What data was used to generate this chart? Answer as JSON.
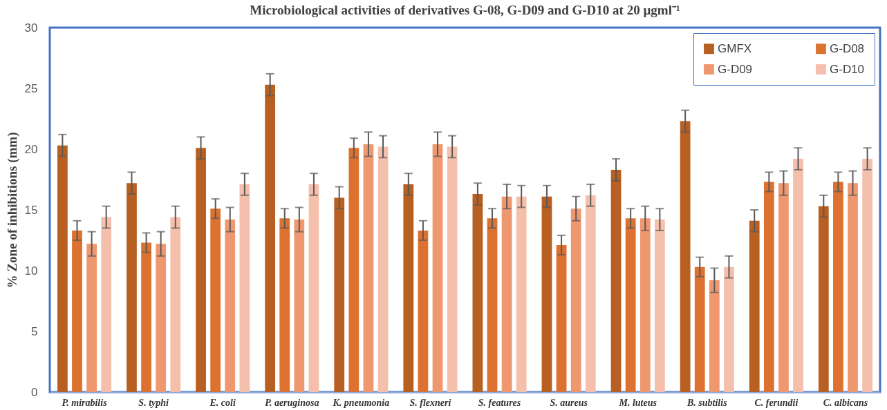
{
  "chart_data": {
    "type": "bar",
    "title": "Microbiological activities of derivatives G-08, G-D09 and G-D10 at 20 µgml⁻¹",
    "ylabel": "% Zone of inhibitions (mm)",
    "categories": [
      "P. mirabilis",
      "S. typhi",
      "E. coli",
      "P. aeruginosa",
      "K. pneumonia",
      "S. flexneri",
      "S.  features",
      "S.  aureus",
      "M. luteus",
      "B. subtilis",
      "C. ferundii",
      "C. albicans"
    ],
    "series": [
      {
        "name": "GMFX",
        "color": "#b85f22",
        "values": [
          20.3,
          17.2,
          20.1,
          25.3,
          16.0,
          17.1,
          16.3,
          16.1,
          18.3,
          22.3,
          14.1,
          15.3
        ],
        "errors": [
          0.9,
          0.9,
          0.9,
          0.9,
          0.9,
          0.9,
          0.9,
          0.9,
          0.9,
          0.9,
          0.9,
          0.9
        ]
      },
      {
        "name": "G-D08",
        "color": "#dd7230",
        "values": [
          13.3,
          12.3,
          15.1,
          14.3,
          20.1,
          13.3,
          14.3,
          12.1,
          14.3,
          10.3,
          17.3,
          17.3
        ],
        "errors": [
          0.8,
          0.8,
          0.8,
          0.8,
          0.8,
          0.8,
          0.8,
          0.8,
          0.8,
          0.8,
          0.8,
          0.8
        ]
      },
      {
        "name": "G-D09",
        "color": "#ef9870",
        "values": [
          12.2,
          12.2,
          14.2,
          14.2,
          20.4,
          20.4,
          16.1,
          15.1,
          14.3,
          9.2,
          17.2,
          17.2
        ],
        "errors": [
          1.0,
          1.0,
          1.0,
          1.0,
          1.0,
          1.0,
          1.0,
          1.0,
          1.0,
          1.0,
          1.0,
          1.0
        ]
      },
      {
        "name": "G-D10",
        "color": "#f4c0ac",
        "values": [
          14.4,
          14.4,
          17.1,
          17.1,
          20.2,
          20.2,
          16.1,
          16.2,
          14.2,
          10.3,
          19.2,
          19.2
        ],
        "errors": [
          0.9,
          0.9,
          0.9,
          0.9,
          0.9,
          0.9,
          0.9,
          0.9,
          0.9,
          0.9,
          0.9,
          0.9
        ]
      }
    ],
    "ylim": [
      0,
      30
    ],
    "yticks": [
      0,
      5,
      10,
      15,
      20,
      25,
      30
    ],
    "grid": false,
    "legend": "top right"
  }
}
